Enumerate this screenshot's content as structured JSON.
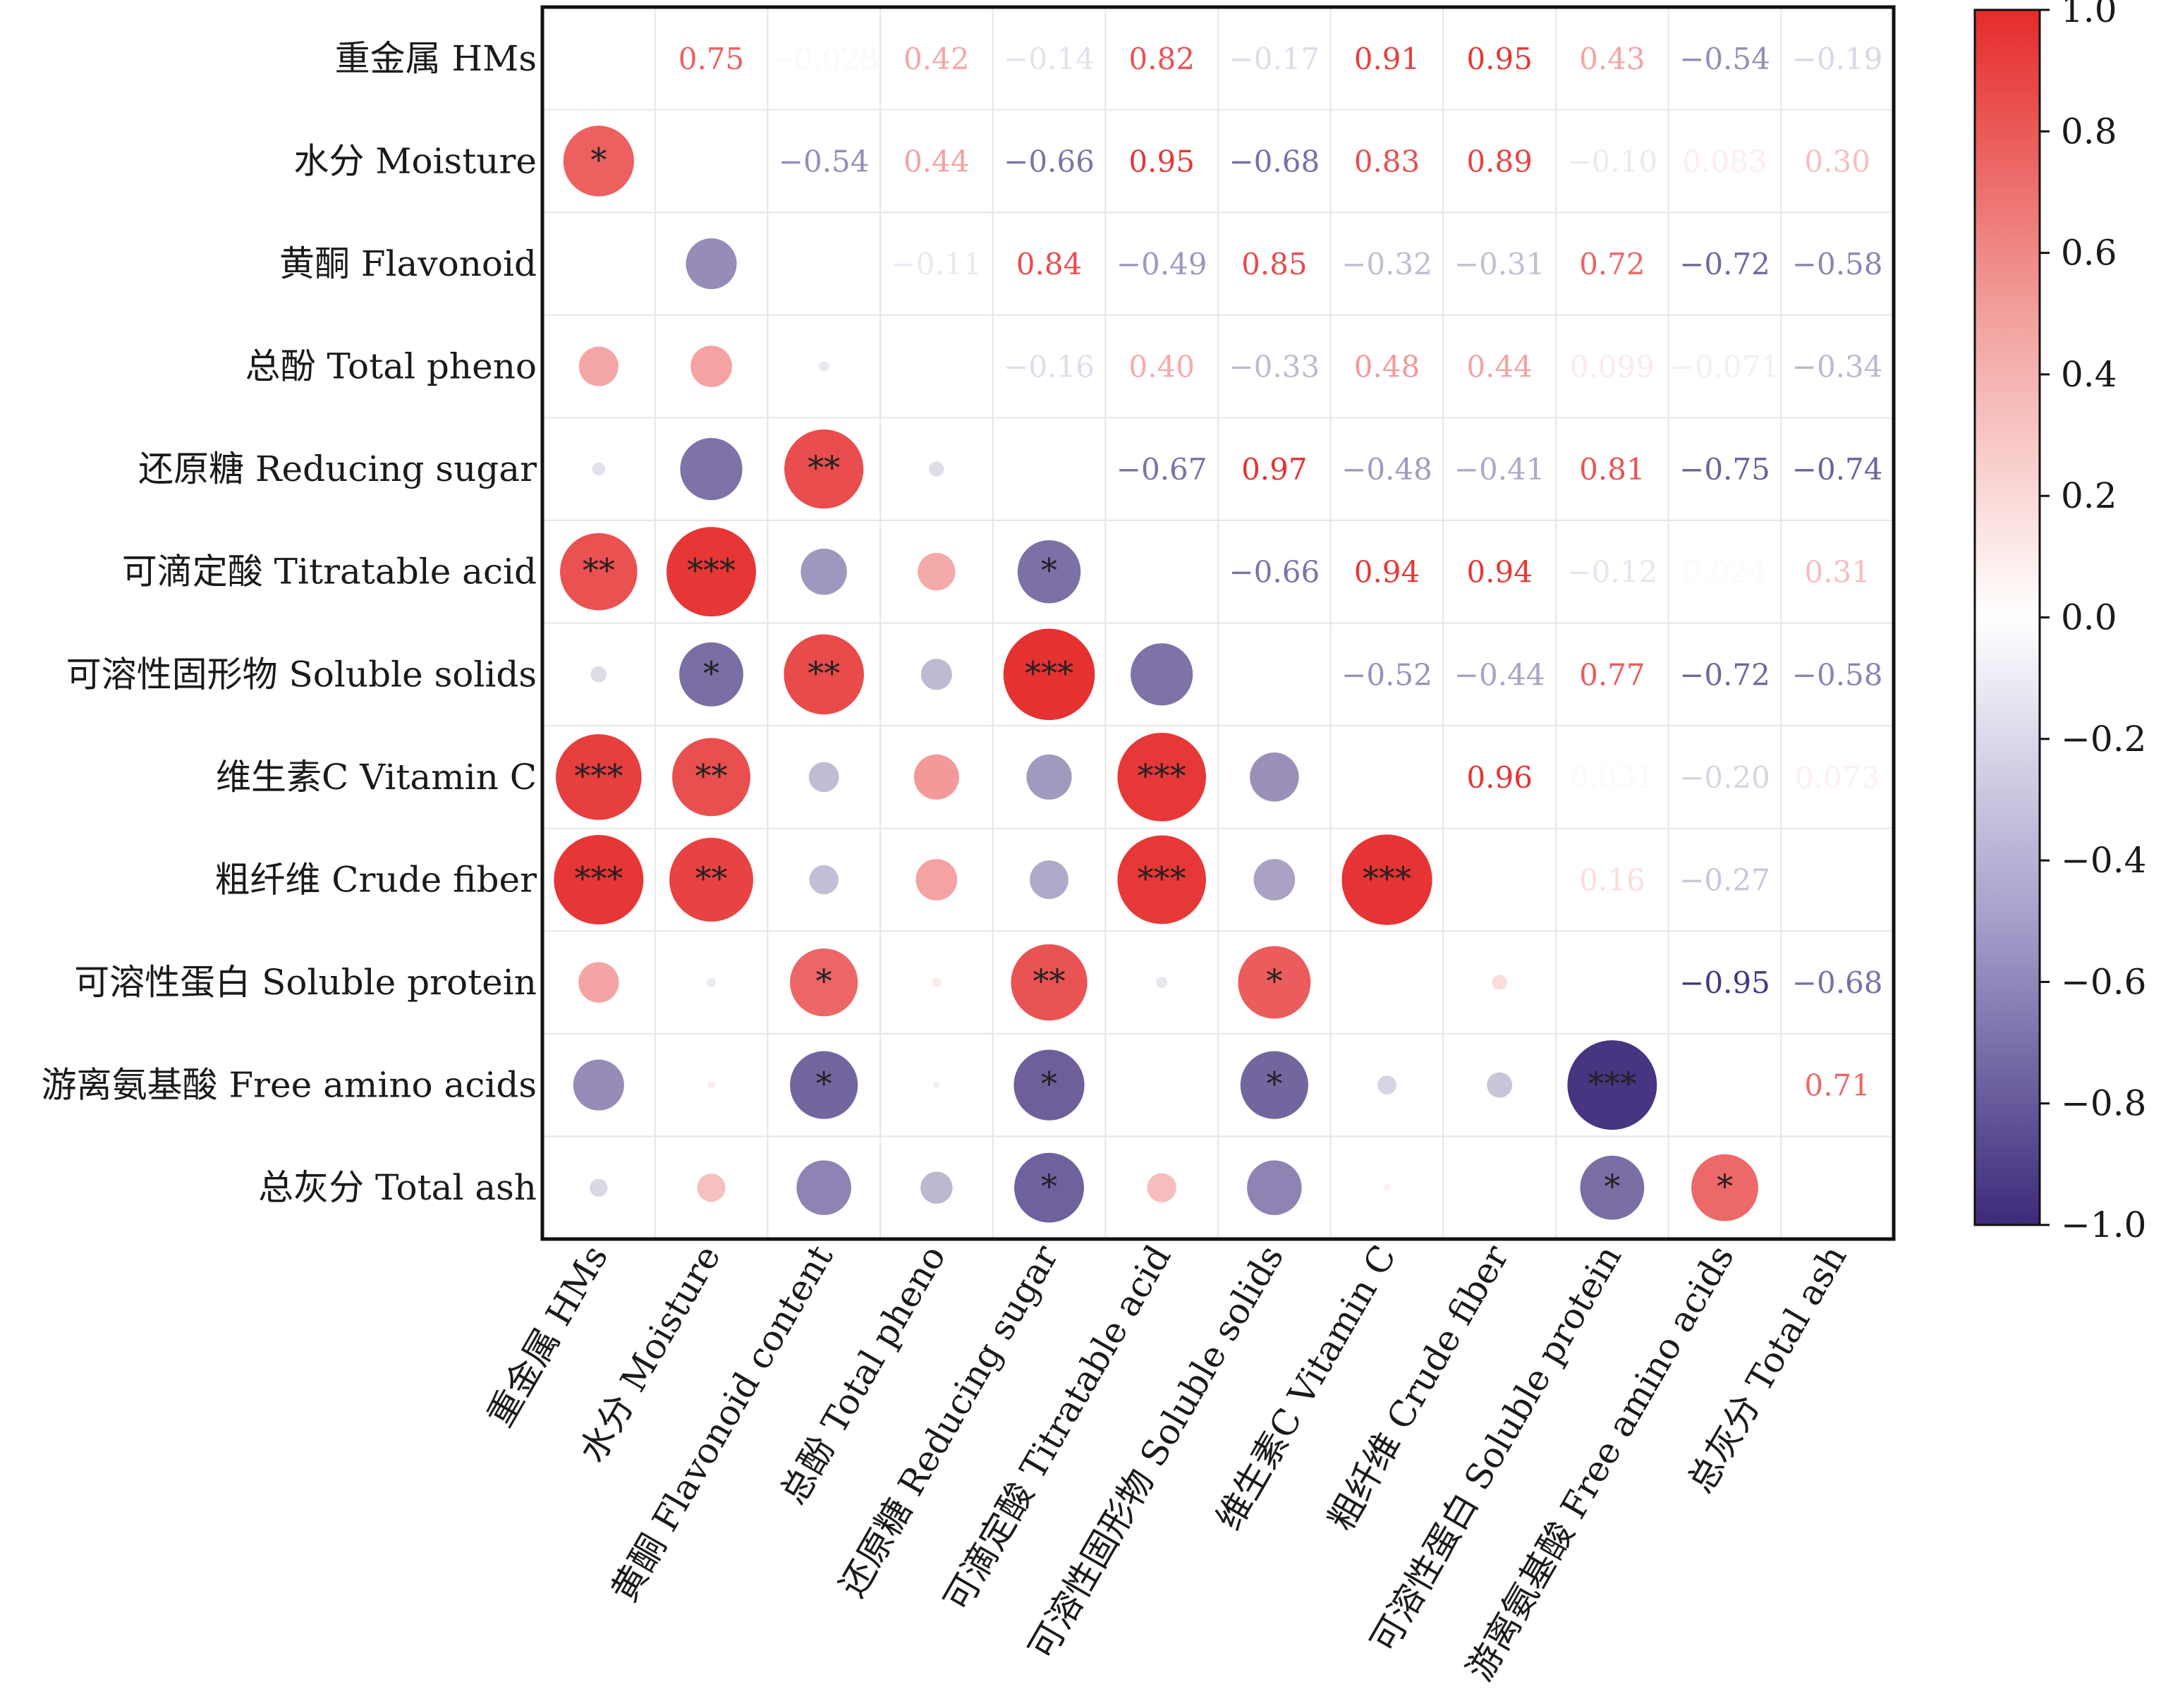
{
  "chart_data": {
    "type": "heatmap",
    "subtype": "correlation-matrix",
    "row_labels": [
      "重金属 HMs",
      "水分 Moisture",
      "黄酮 Flavonoid",
      "总酚 Total pheno",
      "还原糖 Reducing sugar",
      "可滴定酸 Titratable acid",
      "可溶性固形物 Soluble solids",
      "维生素C  Vitamin C",
      "粗纤维 Crude fiber",
      "可溶性蛋白 Soluble protein",
      "游离氨基酸  Free amino acids",
      "总灰分 Total ash"
    ],
    "col_labels": [
      "重金属 HMs",
      "水分 Moisture",
      "黄酮 Flavonoid content",
      "总酚  Total pheno",
      "还原糖 Reducing sugar",
      "可滴定酸 Titratable acid",
      "可溶性固形物 Soluble solids",
      "维生素C  Vitamin C",
      "粗纤维 Crude fiber",
      "可溶性蛋白 Soluble protein",
      "游离氨基酸 Free amino acids",
      "总灰分 Total ash"
    ],
    "matrix": [
      [
        1.0,
        0.75,
        -0.028,
        0.42,
        -0.14,
        0.82,
        -0.17,
        0.91,
        0.95,
        0.43,
        -0.54,
        -0.19
      ],
      [
        0.75,
        1.0,
        -0.54,
        0.44,
        -0.66,
        0.95,
        -0.68,
        0.83,
        0.89,
        -0.1,
        0.083,
        0.3
      ],
      [
        -0.028,
        -0.54,
        1.0,
        -0.11,
        0.84,
        -0.49,
        0.85,
        -0.32,
        -0.31,
        0.72,
        -0.72,
        -0.58
      ],
      [
        0.42,
        0.44,
        -0.11,
        1.0,
        -0.16,
        0.4,
        -0.33,
        0.48,
        0.44,
        0.099,
        -0.071,
        -0.34
      ],
      [
        -0.14,
        -0.66,
        0.84,
        -0.16,
        1.0,
        -0.67,
        0.97,
        -0.48,
        -0.41,
        0.81,
        -0.75,
        -0.74
      ],
      [
        0.82,
        0.95,
        -0.49,
        0.4,
        -0.67,
        1.0,
        -0.66,
        0.94,
        0.94,
        -0.12,
        0.024,
        0.31
      ],
      [
        -0.17,
        -0.68,
        0.85,
        -0.33,
        0.97,
        -0.66,
        1.0,
        -0.52,
        -0.44,
        0.77,
        -0.72,
        -0.58
      ],
      [
        0.91,
        0.83,
        -0.32,
        0.48,
        -0.48,
        0.94,
        -0.52,
        1.0,
        0.96,
        0.031,
        -0.2,
        0.073
      ],
      [
        0.95,
        0.89,
        -0.31,
        0.44,
        -0.41,
        0.94,
        -0.44,
        0.96,
        1.0,
        0.16,
        -0.27,
        0.0
      ],
      [
        0.43,
        -0.1,
        0.72,
        0.099,
        0.81,
        -0.12,
        0.77,
        0.031,
        0.16,
        1.0,
        -0.95,
        -0.68
      ],
      [
        -0.54,
        0.083,
        -0.72,
        -0.071,
        -0.75,
        0.024,
        -0.72,
        -0.2,
        -0.27,
        -0.95,
        1.0,
        0.71
      ],
      [
        -0.19,
        0.3,
        -0.58,
        -0.34,
        -0.74,
        0.31,
        -0.58,
        0.073,
        0.0,
        -0.68,
        0.71,
        1.0
      ]
    ],
    "upper_labels": [
      [
        "",
        "0.75",
        "−0.028",
        "0.42",
        "−0.14",
        "0.82",
        "−0.17",
        "0.91",
        "0.95",
        "0.43",
        "−0.54",
        "−0.19"
      ],
      [
        "",
        "",
        "−0.54",
        "0.44",
        "−0.66",
        "0.95",
        "−0.68",
        "0.83",
        "0.89",
        "−0.10",
        "0.083",
        "0.30"
      ],
      [
        "",
        "",
        "",
        "−0.11",
        "0.84",
        "−0.49",
        "0.85",
        "−0.32",
        "−0.31",
        "0.72",
        "−0.72",
        "−0.58"
      ],
      [
        "",
        "",
        "",
        "",
        "−0.16",
        "0.40",
        "−0.33",
        "0.48",
        "0.44",
        "0.099",
        "−0.071",
        "−0.34"
      ],
      [
        "",
        "",
        "",
        "",
        "",
        "−0.67",
        "0.97",
        "−0.48",
        "−0.41",
        "0.81",
        "−0.75",
        "−0.74"
      ],
      [
        "",
        "",
        "",
        "",
        "",
        "",
        "−0.66",
        "0.94",
        "0.94",
        "−0.12",
        "0.024",
        "0.31"
      ],
      [
        "",
        "",
        "",
        "",
        "",
        "",
        "",
        "−0.52",
        "−0.44",
        "0.77",
        "−0.72",
        "−0.58"
      ],
      [
        "",
        "",
        "",
        "",
        "",
        "",
        "",
        "",
        "0.96",
        "0.031",
        "−0.20",
        "0.073"
      ],
      [
        "",
        "",
        "",
        "",
        "",
        "",
        "",
        "",
        "",
        "0.16",
        "−0.27",
        ""
      ],
      [
        "",
        "",
        "",
        "",
        "",
        "",
        "",
        "",
        "",
        "",
        "−0.95",
        "−0.68"
      ],
      [
        "",
        "",
        "",
        "",
        "",
        "",
        "",
        "",
        "",
        "",
        "",
        "0.71"
      ],
      [
        "",
        "",
        "",
        "",
        "",
        "",
        "",
        "",
        "",
        "",
        "",
        ""
      ]
    ],
    "significance": [
      [
        "",
        "",
        "",
        "",
        "",
        "",
        "",
        "",
        "",
        "",
        "",
        ""
      ],
      [
        "*",
        "",
        "",
        "",
        "",
        "",
        "",
        "",
        "",
        "",
        "",
        ""
      ],
      [
        "",
        "",
        "",
        "",
        "",
        "",
        "",
        "",
        "",
        "",
        "",
        ""
      ],
      [
        "",
        "",
        "",
        "",
        "",
        "",
        "",
        "",
        "",
        "",
        "",
        ""
      ],
      [
        "",
        "",
        "**",
        "",
        "",
        "",
        "",
        "",
        "",
        "",
        "",
        ""
      ],
      [
        "**",
        "***",
        "",
        "",
        "*",
        "",
        "",
        "",
        "",
        "",
        "",
        ""
      ],
      [
        "",
        "*",
        "**",
        "",
        "***",
        "",
        "",
        "",
        "",
        "",
        "",
        ""
      ],
      [
        "***",
        "**",
        "",
        "",
        "",
        "***",
        "",
        "",
        "",
        "",
        "",
        ""
      ],
      [
        "***",
        "**",
        "",
        "",
        "",
        "***",
        "",
        "***",
        "",
        "",
        "",
        ""
      ],
      [
        "",
        "",
        "*",
        "",
        "**",
        "",
        "*",
        "",
        "",
        "",
        "",
        ""
      ],
      [
        "",
        "",
        "*",
        "",
        "*",
        "",
        "*",
        "",
        "",
        "***",
        "",
        ""
      ],
      [
        "",
        "",
        "",
        "",
        "*",
        "",
        "",
        "",
        "",
        "*",
        "*",
        ""
      ]
    ],
    "lower_triangle": "circles (size and colour by coefficient, stars = significance)",
    "upper_triangle": "coefficient text coloured by value",
    "colorbar": {
      "range": [
        -1.0,
        1.0
      ],
      "ticks": [
        "1.0",
        "0.8",
        "0.6",
        "0.4",
        "0.2",
        "0.0",
        "−0.2",
        "−0.4",
        "−0.6",
        "−0.8",
        "−1.0"
      ],
      "tick_values": [
        1.0,
        0.8,
        0.6,
        0.4,
        0.2,
        0.0,
        -0.2,
        -0.4,
        -0.6,
        -0.8,
        -1.0
      ],
      "colors": [
        "#e52b2b",
        "#ffffff",
        "#3d2a7a"
      ]
    },
    "grid": true
  }
}
